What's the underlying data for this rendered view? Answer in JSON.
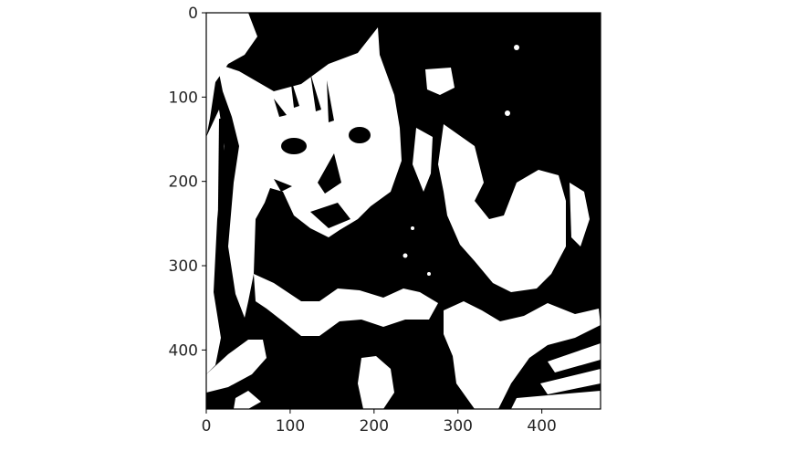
{
  "plot": {
    "image": {
      "description_icon": "binary-thresholded-cat-photo",
      "colors": {
        "foreground": "#ffffff",
        "background": "#000000"
      },
      "data_width": 470,
      "data_height": 470
    },
    "x_axis": {
      "ticks": [
        "0",
        "100",
        "200",
        "300",
        "400"
      ],
      "tick_values": [
        0,
        100,
        200,
        300,
        400
      ],
      "range": [
        0,
        470
      ]
    },
    "y_axis": {
      "ticks": [
        "0",
        "100",
        "200",
        "300",
        "400"
      ],
      "tick_values": [
        0,
        100,
        200,
        300,
        400
      ],
      "range": [
        0,
        470
      ],
      "inverted": true
    }
  }
}
